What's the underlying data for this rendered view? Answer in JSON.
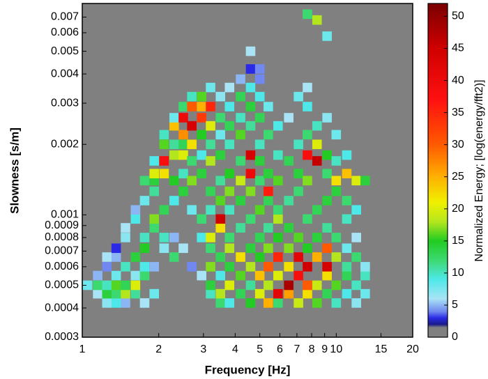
{
  "chart_data": {
    "type": "heatmap",
    "x_label": "Frequency [Hz]",
    "y_label": "Slowness [s/m]",
    "colorbar_label": "Normalized Energy; [log(energy/fft2)]",
    "x_scale": "log",
    "y_scale": "log",
    "xlim": [
      1,
      20
    ],
    "ylim": [
      0.0003,
      0.008
    ],
    "xticks": [
      1,
      2,
      3,
      4,
      5,
      6,
      7,
      8,
      9,
      10,
      15,
      20
    ],
    "yticks": [
      0.0003,
      0.0004,
      0.0005,
      0.0006,
      0.0007,
      0.0008,
      0.0009,
      0.001,
      0.002,
      0.003,
      0.004,
      0.005,
      0.006,
      0.007
    ],
    "zlim": [
      0,
      52
    ],
    "zticks": [
      0,
      5,
      10,
      15,
      20,
      25,
      30,
      35,
      40,
      45,
      50
    ],
    "background": "#808080",
    "colorscale": [
      [
        0,
        "#808080"
      ],
      [
        1.5,
        "#808080"
      ],
      [
        2,
        "#1a1a8c"
      ],
      [
        3,
        "#2a2ae6"
      ],
      [
        4,
        "#7088f0"
      ],
      [
        6,
        "#a8e4f5"
      ],
      [
        9,
        "#4ee8e8"
      ],
      [
        12,
        "#3cd870"
      ],
      [
        15,
        "#22cc22"
      ],
      [
        18,
        "#b4e61e"
      ],
      [
        21,
        "#f0f000"
      ],
      [
        25,
        "#ffb000"
      ],
      [
        30,
        "#ff5a00"
      ],
      [
        37,
        "#ff1010"
      ],
      [
        45,
        "#d00000"
      ],
      [
        52,
        "#7a0000"
      ]
    ],
    "columns": [
      {
        "x": 1.05,
        "y": [
          0.0005
        ],
        "z": [
          8
        ]
      },
      {
        "x": 1.15,
        "y": [
          0.00046,
          0.0005,
          0.00055
        ],
        "z": [
          6,
          12,
          5
        ]
      },
      {
        "x": 1.25,
        "y": [
          0.00042,
          0.00046,
          0.0005,
          0.0006,
          0.00066
        ],
        "z": [
          7,
          14,
          10,
          4,
          6
        ]
      },
      {
        "x": 1.36,
        "y": [
          0.00042,
          0.00046,
          0.0005,
          0.00055,
          0.00066,
          0.00072
        ],
        "z": [
          9,
          12,
          16,
          8,
          5,
          3
        ]
      },
      {
        "x": 1.48,
        "y": [
          0.00042,
          0.00046,
          0.0005,
          0.0006,
          0.0008,
          0.00088
        ],
        "z": [
          5,
          18,
          13,
          10,
          7,
          6
        ]
      },
      {
        "x": 1.62,
        "y": [
          0.00046,
          0.0005,
          0.00055,
          0.00066,
          0.00096,
          0.00105
        ],
        "z": [
          11,
          20,
          7,
          14,
          9,
          5
        ]
      },
      {
        "x": 1.76,
        "y": [
          0.00042,
          0.00055,
          0.0006,
          0.00072,
          0.0008,
          0.00115,
          0.0014
        ],
        "z": [
          6,
          12,
          9,
          15,
          10,
          8,
          12
        ]
      },
      {
        "x": 1.92,
        "y": [
          0.00046,
          0.0006,
          0.00088,
          0.00096,
          0.00126,
          0.0014,
          0.0015,
          0.0017
        ],
        "z": [
          8,
          5,
          12,
          17,
          11,
          14,
          20,
          9
        ]
      },
      {
        "x": 2.1,
        "y": [
          0.00072,
          0.0008,
          0.00105,
          0.0015,
          0.0017,
          0.002,
          0.0022
        ],
        "z": [
          7,
          10,
          13,
          22,
          38,
          16,
          10
        ]
      },
      {
        "x": 2.3,
        "y": [
          0.00066,
          0.0008,
          0.00115,
          0.0014,
          0.0018,
          0.002,
          0.0024,
          0.0026
        ],
        "z": [
          12,
          5,
          9,
          15,
          18,
          11,
          24,
          8
        ]
      },
      {
        "x": 2.5,
        "y": [
          0.00072,
          0.00126,
          0.0015,
          0.0018,
          0.002,
          0.0022,
          0.0026,
          0.0029
        ],
        "z": [
          6,
          14,
          10,
          20,
          13,
          27,
          40,
          12
        ]
      },
      {
        "x": 2.7,
        "y": [
          0.0006,
          0.00105,
          0.0014,
          0.0017,
          0.002,
          0.0024,
          0.0029,
          0.0032
        ],
        "z": [
          4,
          8,
          17,
          12,
          22,
          44,
          30,
          10
        ]
      },
      {
        "x": 2.95,
        "y": [
          0.00055,
          0.0008,
          0.00096,
          0.0015,
          0.0018,
          0.0022,
          0.0026,
          0.0029,
          0.0032
        ],
        "z": [
          6,
          9,
          12,
          14,
          9,
          15,
          33,
          25,
          16
        ]
      },
      {
        "x": 3.2,
        "y": [
          0.00046,
          0.0005,
          0.0006,
          0.00072,
          0.0008,
          0.00105,
          0.00126,
          0.0017,
          0.002,
          0.0024,
          0.0029,
          0.0035
        ],
        "z": [
          10,
          14,
          17,
          12,
          20,
          10,
          13,
          18,
          11,
          20,
          35,
          8
        ]
      },
      {
        "x": 3.5,
        "y": [
          0.00042,
          0.00046,
          0.00055,
          0.00066,
          0.00088,
          0.00096,
          0.00115,
          0.0014,
          0.0018,
          0.0022,
          0.0026,
          0.0032
        ],
        "z": [
          12,
          18,
          9,
          13,
          22,
          45,
          16,
          11,
          14,
          8,
          12,
          7
        ]
      },
      {
        "x": 3.8,
        "y": [
          0.00042,
          0.0005,
          0.0006,
          0.00072,
          0.0008,
          0.00105,
          0.00126,
          0.0015,
          0.002,
          0.0024,
          0.0029,
          0.0035
        ],
        "z": [
          9,
          20,
          14,
          18,
          12,
          10,
          17,
          15,
          10,
          13,
          9,
          6
        ]
      },
      {
        "x": 4.2,
        "y": [
          0.00046,
          0.00055,
          0.00066,
          0.00088,
          0.00115,
          0.0014,
          0.0017,
          0.0022,
          0.0026,
          0.0032,
          0.0038
        ],
        "z": [
          13,
          16,
          22,
          11,
          14,
          19,
          12,
          16,
          10,
          13,
          5
        ]
      },
      {
        "x": 4.6,
        "y": [
          0.00042,
          0.0005,
          0.0006,
          0.00072,
          0.00096,
          0.00126,
          0.0015,
          0.0018,
          0.0024,
          0.0029,
          0.0035,
          0.0042,
          0.005
        ],
        "z": [
          15,
          11,
          18,
          14,
          12,
          17,
          40,
          44,
          11,
          14,
          9,
          3,
          6
        ]
      },
      {
        "x": 5.0,
        "y": [
          0.00046,
          0.00055,
          0.00066,
          0.0008,
          0.00105,
          0.0014,
          0.0017,
          0.002,
          0.0026,
          0.0032,
          0.0038,
          0.0042
        ],
        "z": [
          20,
          24,
          15,
          13,
          16,
          12,
          14,
          10,
          13,
          9,
          4,
          4
        ]
      },
      {
        "x": 5.4,
        "y": [
          0.00042,
          0.0005,
          0.0006,
          0.00072,
          0.00088,
          0.00115,
          0.00126,
          0.0015,
          0.0022,
          0.0029
        ],
        "z": [
          25,
          18,
          30,
          17,
          11,
          13,
          36,
          14,
          12,
          8
        ]
      },
      {
        "x": 5.9,
        "y": [
          0.00042,
          0.00046,
          0.00055,
          0.00066,
          0.0008,
          0.00096,
          0.00105,
          0.0014,
          0.0018,
          0.0024
        ],
        "z": [
          12,
          42,
          20,
          35,
          15,
          18,
          12,
          16,
          10,
          9
        ]
      },
      {
        "x": 6.5,
        "y": [
          0.00046,
          0.0005,
          0.0006,
          0.00072,
          0.00088,
          0.00115,
          0.0017,
          0.0026
        ],
        "z": [
          26,
          48,
          22,
          17,
          14,
          11,
          13,
          6
        ]
      },
      {
        "x": 7.1,
        "y": [
          0.00042,
          0.00055,
          0.00066,
          0.0008,
          0.00126,
          0.0015,
          0.002,
          0.0032
        ],
        "z": [
          19,
          38,
          42,
          16,
          12,
          14,
          10,
          8
        ]
      },
      {
        "x": 7.7,
        "y": [
          0.00046,
          0.0005,
          0.0006,
          0.00072,
          0.00096,
          0.0014,
          0.0018,
          0.0022,
          0.0029,
          0.0035,
          0.0072
        ],
        "z": [
          22,
          30,
          45,
          15,
          12,
          17,
          38,
          12,
          9,
          6,
          12
        ]
      },
      {
        "x": 8.4,
        "y": [
          0.00042,
          0.0005,
          0.00066,
          0.0008,
          0.00105,
          0.0017,
          0.002,
          0.0024,
          0.0068
        ],
        "z": [
          16,
          19,
          25,
          14,
          13,
          46,
          20,
          10,
          18
        ]
      },
      {
        "x": 9.2,
        "y": [
          0.00046,
          0.00055,
          0.0006,
          0.00072,
          0.00088,
          0.00115,
          0.0015,
          0.0018,
          0.0026,
          0.0058
        ],
        "z": [
          13,
          22,
          44,
          30,
          11,
          14,
          12,
          15,
          7,
          8
        ]
      },
      {
        "x": 10,
        "y": [
          0.00042,
          0.0005,
          0.00066,
          0.0008,
          0.00126,
          0.0014,
          0.0017,
          0.0022
        ],
        "z": [
          10,
          16,
          18,
          12,
          14,
          22,
          10,
          8
        ]
      },
      {
        "x": 11,
        "y": [
          0.00046,
          0.00055,
          0.0006,
          0.00072,
          0.00096,
          0.00115,
          0.0015,
          0.0018
        ],
        "z": [
          9,
          13,
          11,
          8,
          10,
          12,
          24,
          9
        ]
      },
      {
        "x": 12,
        "y": [
          0.00042,
          0.0005,
          0.00066,
          0.0008,
          0.00105,
          0.0014
        ],
        "z": [
          7,
          10,
          12,
          6,
          9,
          20
        ]
      },
      {
        "x": 13,
        "y": [
          0.00046,
          0.00055,
          0.0006,
          0.0014
        ],
        "z": [
          8,
          10,
          7,
          14
        ]
      }
    ]
  }
}
